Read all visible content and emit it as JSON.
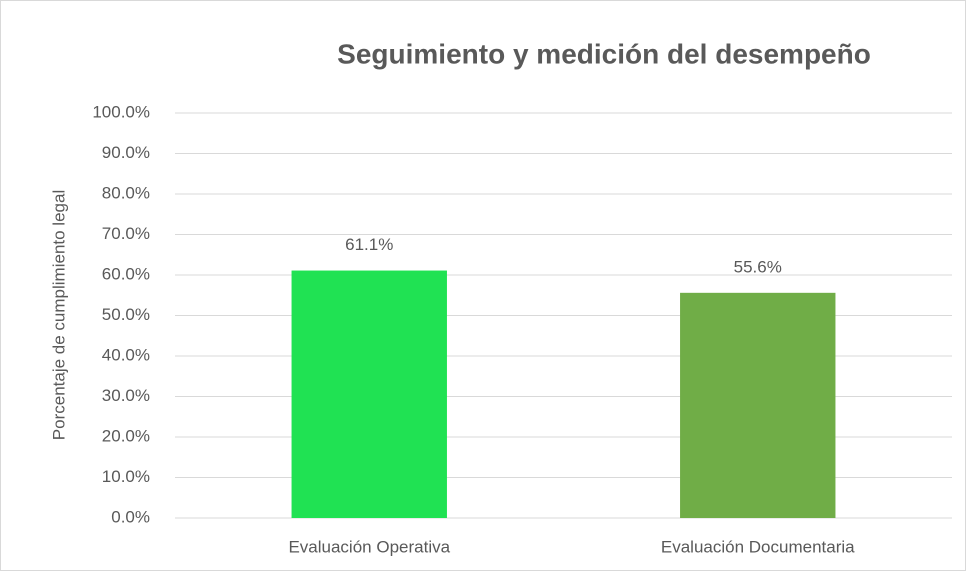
{
  "chart_data": {
    "type": "bar",
    "title": "Seguimiento y medición del desempeño",
    "y_label": "Porcentaje de cumplimiento legal",
    "categories": [
      "Evaluación Operativa",
      "Evaluación Documentaria"
    ],
    "values": [
      61.1,
      55.6
    ],
    "value_labels": [
      "61.1%",
      "55.6%"
    ],
    "colors": [
      "#20e253",
      "#70ad47"
    ],
    "ylim": [
      0,
      100
    ],
    "yticks": [
      {
        "value": 0,
        "label": "0.0%"
      },
      {
        "value": 10,
        "label": "10.0%"
      },
      {
        "value": 20,
        "label": "20.0%"
      },
      {
        "value": 30,
        "label": "30.0%"
      },
      {
        "value": 40,
        "label": "40.0%"
      },
      {
        "value": 50,
        "label": "50.0%"
      },
      {
        "value": 60,
        "label": "60.0%"
      },
      {
        "value": 70,
        "label": "70.0%"
      },
      {
        "value": 80,
        "label": "80.0%"
      },
      {
        "value": 90,
        "label": "90.0%"
      },
      {
        "value": 100,
        "label": "100.0%"
      }
    ],
    "grid": true
  }
}
